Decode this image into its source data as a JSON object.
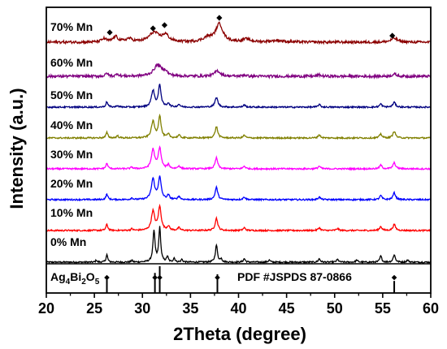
{
  "chart_data": {
    "type": "line",
    "xlabel": "2Theta (degree)",
    "ylabel": "Intensity (a.u.)",
    "xlim": [
      20,
      60
    ],
    "xticks": [
      20,
      25,
      30,
      35,
      40,
      45,
      50,
      55,
      60
    ],
    "grid": false,
    "reference": {
      "phase_label_parts": [
        "Ag",
        "4",
        "Bi",
        "2",
        "O",
        "5"
      ],
      "card_label": "PDF #JSPDS 87-0866",
      "peaks": [
        {
          "x": 26.3,
          "h": 0.55
        },
        {
          "x": 31.3,
          "h": 0.75
        },
        {
          "x": 31.8,
          "h": 1.0
        },
        {
          "x": 37.8,
          "h": 0.7
        },
        {
          "x": 56.2,
          "h": 0.45
        }
      ],
      "markers": [
        26.3,
        31.3,
        31.8,
        37.8,
        56.2
      ]
    },
    "series": [
      {
        "name": "0% Mn",
        "color": "#000000",
        "scale": 1.0,
        "peaks": [
          [
            25.2,
            0.06,
            0.08
          ],
          [
            26.3,
            0.22,
            0.1
          ],
          [
            28.9,
            0.06,
            0.08
          ],
          [
            31.2,
            0.9,
            0.13
          ],
          [
            31.8,
            1.0,
            0.12
          ],
          [
            32.6,
            0.16,
            0.1
          ],
          [
            33.3,
            0.12,
            0.1
          ],
          [
            34.1,
            0.08,
            0.1
          ],
          [
            37.7,
            0.5,
            0.13
          ],
          [
            38.2,
            0.1,
            0.1
          ],
          [
            40.6,
            0.1,
            0.12
          ],
          [
            43.2,
            0.06,
            0.12
          ],
          [
            48.4,
            0.1,
            0.12
          ],
          [
            50.3,
            0.08,
            0.12
          ],
          [
            52.3,
            0.06,
            0.12
          ],
          [
            54.8,
            0.18,
            0.12
          ],
          [
            56.2,
            0.22,
            0.13
          ],
          [
            57.6,
            0.06,
            0.12
          ]
        ]
      },
      {
        "name": "10% Mn",
        "color": "#ff0000",
        "scale": 0.8,
        "peaks": [
          [
            26.3,
            0.22,
            0.12
          ],
          [
            28.9,
            0.06,
            0.12
          ],
          [
            31.1,
            0.7,
            0.2
          ],
          [
            31.8,
            0.85,
            0.18
          ],
          [
            32.7,
            0.15,
            0.14
          ],
          [
            33.8,
            0.1,
            0.14
          ],
          [
            37.7,
            0.45,
            0.16
          ],
          [
            40.6,
            0.1,
            0.14
          ],
          [
            48.4,
            0.1,
            0.14
          ],
          [
            50.3,
            0.07,
            0.14
          ],
          [
            54.8,
            0.15,
            0.14
          ],
          [
            56.2,
            0.22,
            0.16
          ]
        ]
      },
      {
        "name": "20% Mn",
        "color": "#0000ff",
        "scale": 0.8,
        "peaks": [
          [
            26.3,
            0.2,
            0.12
          ],
          [
            28.9,
            0.06,
            0.12
          ],
          [
            31.1,
            0.75,
            0.2
          ],
          [
            31.8,
            0.8,
            0.18
          ],
          [
            32.7,
            0.15,
            0.14
          ],
          [
            33.8,
            0.12,
            0.14
          ],
          [
            37.7,
            0.45,
            0.16
          ],
          [
            40.6,
            0.1,
            0.14
          ],
          [
            48.4,
            0.1,
            0.14
          ],
          [
            54.8,
            0.15,
            0.14
          ],
          [
            56.2,
            0.25,
            0.16
          ]
        ]
      },
      {
        "name": "30% Mn",
        "color": "#ff00ff",
        "scale": 0.8,
        "peaks": [
          [
            26.3,
            0.2,
            0.12
          ],
          [
            28.9,
            0.06,
            0.12
          ],
          [
            31.1,
            0.7,
            0.2
          ],
          [
            31.8,
            0.75,
            0.18
          ],
          [
            32.7,
            0.14,
            0.14
          ],
          [
            33.8,
            0.1,
            0.14
          ],
          [
            37.7,
            0.4,
            0.16
          ],
          [
            40.6,
            0.1,
            0.14
          ],
          [
            48.4,
            0.1,
            0.14
          ],
          [
            54.8,
            0.14,
            0.14
          ],
          [
            56.2,
            0.22,
            0.16
          ]
        ]
      },
      {
        "name": "40% Mn",
        "color": "#808000",
        "scale": 0.8,
        "peaks": [
          [
            26.3,
            0.2,
            0.12
          ],
          [
            27.4,
            0.08,
            0.12
          ],
          [
            31.1,
            0.6,
            0.2
          ],
          [
            31.8,
            0.8,
            0.16
          ],
          [
            32.7,
            0.13,
            0.14
          ],
          [
            33.8,
            0.1,
            0.14
          ],
          [
            37.7,
            0.42,
            0.16
          ],
          [
            40.6,
            0.1,
            0.14
          ],
          [
            48.4,
            0.12,
            0.14
          ],
          [
            54.8,
            0.15,
            0.14
          ],
          [
            56.2,
            0.25,
            0.16
          ]
        ]
      },
      {
        "name": "50% Mn",
        "color": "#000080",
        "scale": 0.8,
        "peaks": [
          [
            26.3,
            0.2,
            0.12
          ],
          [
            27.4,
            0.06,
            0.12
          ],
          [
            31.1,
            0.6,
            0.2
          ],
          [
            31.8,
            0.8,
            0.16
          ],
          [
            32.7,
            0.14,
            0.14
          ],
          [
            33.8,
            0.1,
            0.14
          ],
          [
            37.7,
            0.35,
            0.18
          ],
          [
            40.6,
            0.08,
            0.14
          ],
          [
            48.4,
            0.1,
            0.14
          ],
          [
            54.8,
            0.12,
            0.14
          ],
          [
            56.2,
            0.18,
            0.16
          ]
        ]
      },
      {
        "name": "60% Mn",
        "color": "#800080",
        "scale": 0.8,
        "peaks": [
          [
            26.3,
            0.12,
            0.14
          ],
          [
            27.4,
            0.1,
            0.14
          ],
          [
            31.6,
            0.42,
            0.5
          ],
          [
            32.4,
            0.15,
            0.2
          ],
          [
            37.8,
            0.2,
            0.35
          ],
          [
            40.6,
            0.05,
            0.2
          ],
          [
            48.4,
            0.05,
            0.2
          ],
          [
            56.2,
            0.08,
            0.25
          ]
        ]
      },
      {
        "name": "70% Mn",
        "color": "#8b0000",
        "scale": 0.8,
        "peaks": [
          [
            26.0,
            0.12,
            0.3
          ],
          [
            27.2,
            0.2,
            0.3
          ],
          [
            28.6,
            0.12,
            0.4
          ],
          [
            31.2,
            0.35,
            0.6
          ],
          [
            32.4,
            0.25,
            0.4
          ],
          [
            36.8,
            0.15,
            0.6
          ],
          [
            38.0,
            0.65,
            0.45
          ],
          [
            40.8,
            0.1,
            0.5
          ],
          [
            44.0,
            0.06,
            0.8
          ],
          [
            56.2,
            0.14,
            0.4
          ]
        ]
      }
    ],
    "annotation_markers_70": [
      26.6,
      31.1,
      32.3,
      38.0,
      56.0
    ]
  }
}
